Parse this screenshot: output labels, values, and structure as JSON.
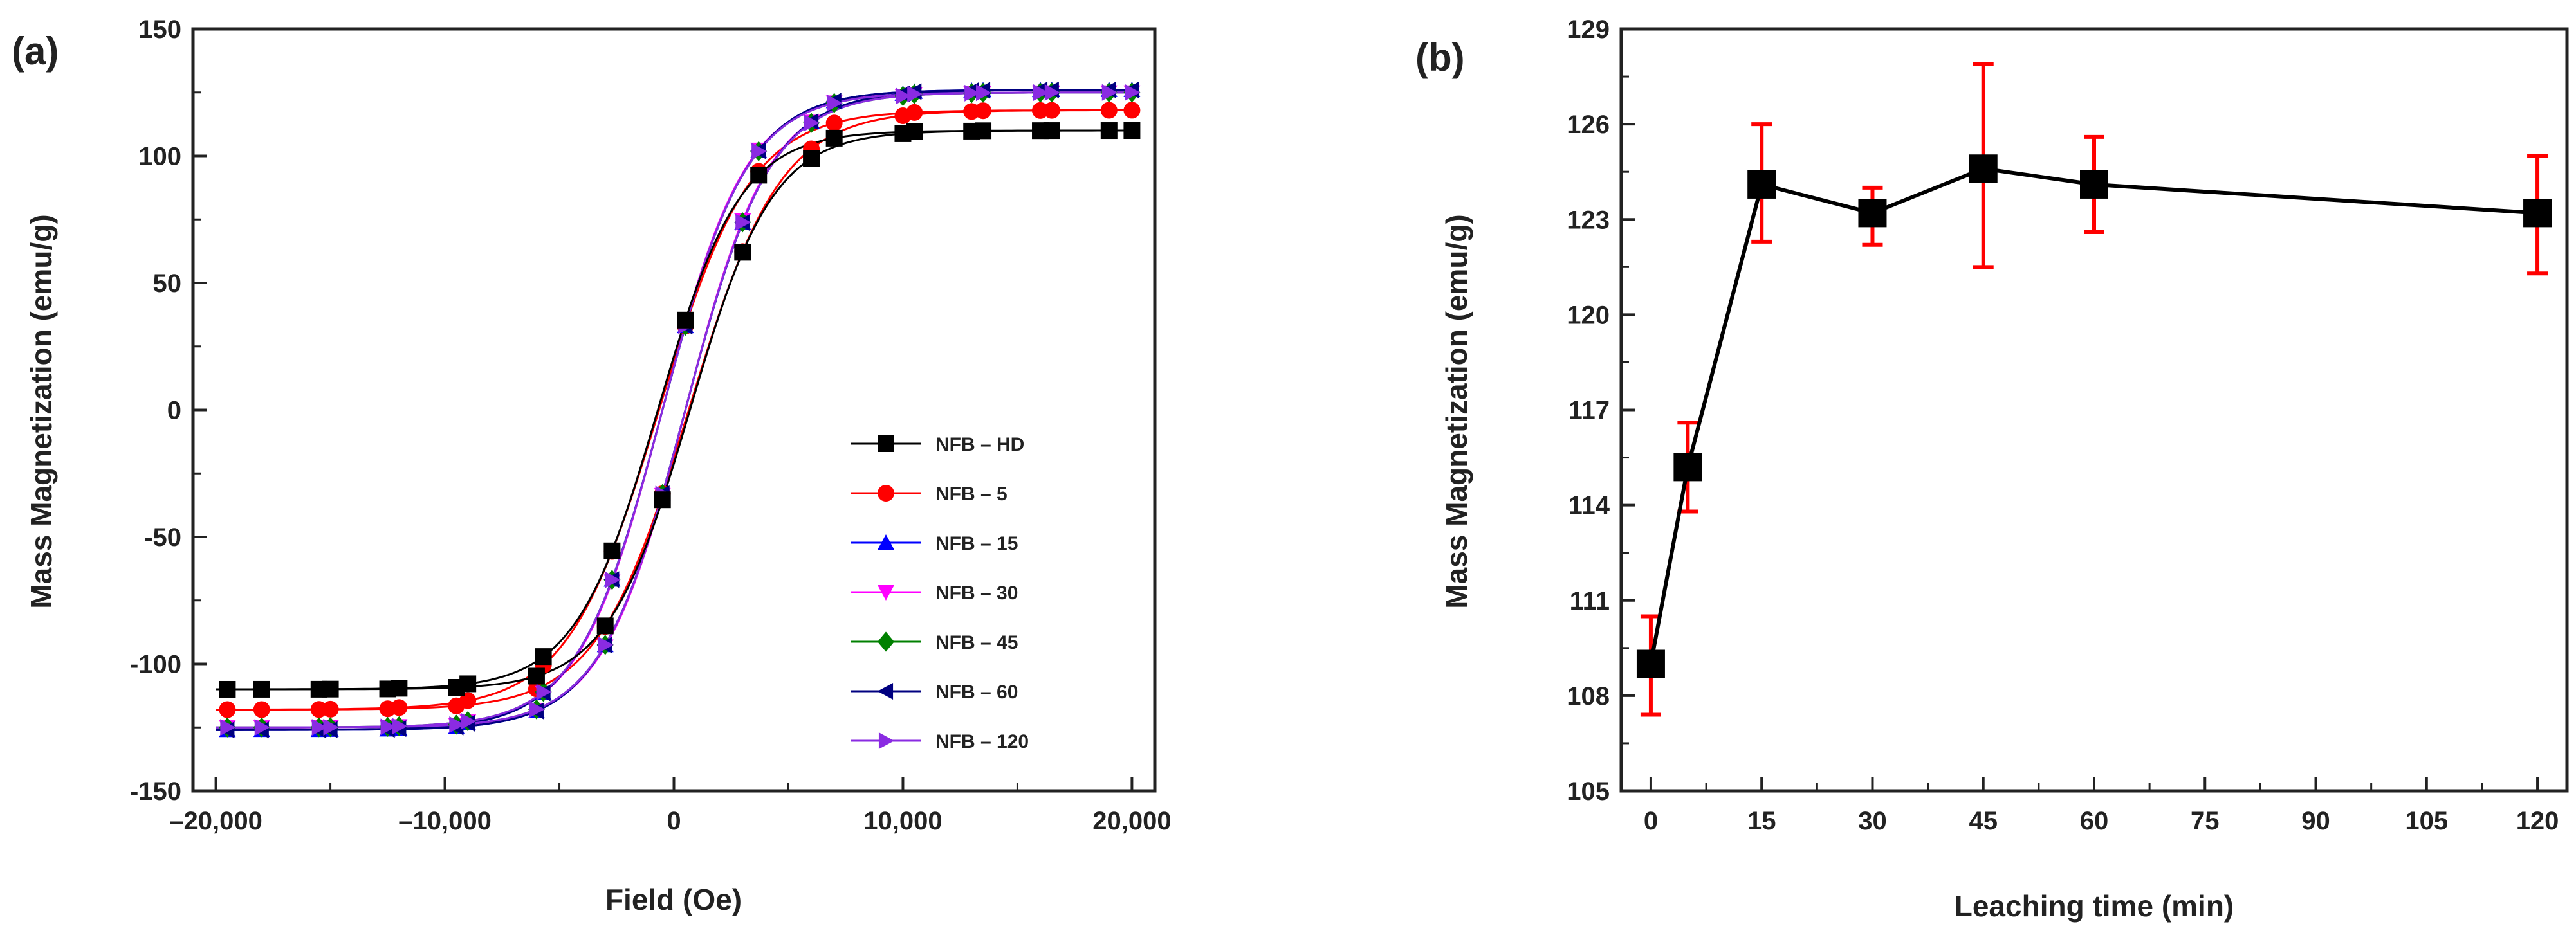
{
  "chart_data": [
    {
      "type": "line",
      "panel_label": "(a)",
      "xlabel": "Field (Oe)",
      "ylabel": "Mass Magnetization (emu/g)",
      "xlim": [
        -21000,
        21000
      ],
      "ylim": [
        -150,
        150
      ],
      "xticks": [
        -20000,
        -10000,
        0,
        10000,
        20000
      ],
      "xtick_labels": [
        "–20,000",
        "–10,000",
        "0",
        "10,000",
        "20,000"
      ],
      "yticks": [
        -150,
        -100,
        -50,
        0,
        50,
        100,
        150
      ],
      "ytick_labels": [
        "-150",
        "-100",
        "-50",
        "0",
        "50",
        "100",
        "150"
      ],
      "legend_position": "bottom-right",
      "marker_fields": [
        -19500,
        -18000,
        -15500,
        -15000,
        -12500,
        -12000,
        -9500,
        -9000,
        -6000,
        -5700,
        -3000,
        -2700,
        -500,
        500,
        3000,
        3700,
        6000,
        7000,
        10000,
        10500,
        13000,
        13500,
        16000,
        16500,
        19000,
        20000
      ],
      "series": [
        {
          "name": "NFB – HD",
          "color": "#000000",
          "marker": "square",
          "ms": 110,
          "k": 1.0,
          "hc": 700,
          "h0": 3600
        },
        {
          "name": "NFB – 5",
          "color": "#ff0000",
          "marker": "circle",
          "ms": 118,
          "k": 1.0,
          "hc": 650,
          "h0": 4000
        },
        {
          "name": "NFB – 15",
          "color": "#0000ff",
          "marker": "triangle-up",
          "ms": 126,
          "k": 1.1,
          "hc": 500,
          "h0": 4100
        },
        {
          "name": "NFB – 30",
          "color": "#ff00ff",
          "marker": "triangle-down",
          "ms": 125,
          "k": 1.1,
          "hc": 500,
          "h0": 4000
        },
        {
          "name": "NFB – 45",
          "color": "#008000",
          "marker": "diamond",
          "ms": 125,
          "k": 1.1,
          "hc": 500,
          "h0": 4050
        },
        {
          "name": "NFB – 60",
          "color": "#000080",
          "marker": "triangle-left",
          "ms": 126,
          "k": 1.1,
          "hc": 500,
          "h0": 4100
        },
        {
          "name": "NFB – 120",
          "color": "#8a2be2",
          "marker": "triangle-right",
          "ms": 125,
          "k": 1.1,
          "hc": 500,
          "h0": 4050
        }
      ]
    },
    {
      "type": "line",
      "panel_label": "(b)",
      "xlabel": "Leaching time (min)",
      "ylabel": "Mass Magnetization (emu/g)",
      "xlim": [
        -4,
        124
      ],
      "ylim": [
        105,
        129
      ],
      "xticks": [
        0,
        15,
        30,
        45,
        60,
        75,
        90,
        105,
        120
      ],
      "xtick_labels": [
        "0",
        "15",
        "30",
        "45",
        "60",
        "75",
        "90",
        "105",
        "120"
      ],
      "yticks": [
        105,
        108,
        111,
        114,
        117,
        120,
        123,
        126,
        129
      ],
      "ytick_labels": [
        "105",
        "108",
        "111",
        "114",
        "117",
        "120",
        "123",
        "126",
        "129"
      ],
      "marker": "square",
      "line_color": "#000000",
      "errorbar_color": "#ff0000",
      "points": [
        {
          "x": 0,
          "y": 109.0,
          "err_low": 107.4,
          "err_high": 110.5
        },
        {
          "x": 5,
          "y": 115.2,
          "err_low": 113.8,
          "err_high": 116.6
        },
        {
          "x": 15,
          "y": 124.1,
          "err_low": 122.3,
          "err_high": 126.0
        },
        {
          "x": 30,
          "y": 123.2,
          "err_low": 122.2,
          "err_high": 124.0
        },
        {
          "x": 45,
          "y": 124.6,
          "err_low": 121.5,
          "err_high": 127.9
        },
        {
          "x": 60,
          "y": 124.1,
          "err_low": 122.6,
          "err_high": 125.6
        },
        {
          "x": 120,
          "y": 123.2,
          "err_low": 121.3,
          "err_high": 125.0
        }
      ]
    }
  ]
}
